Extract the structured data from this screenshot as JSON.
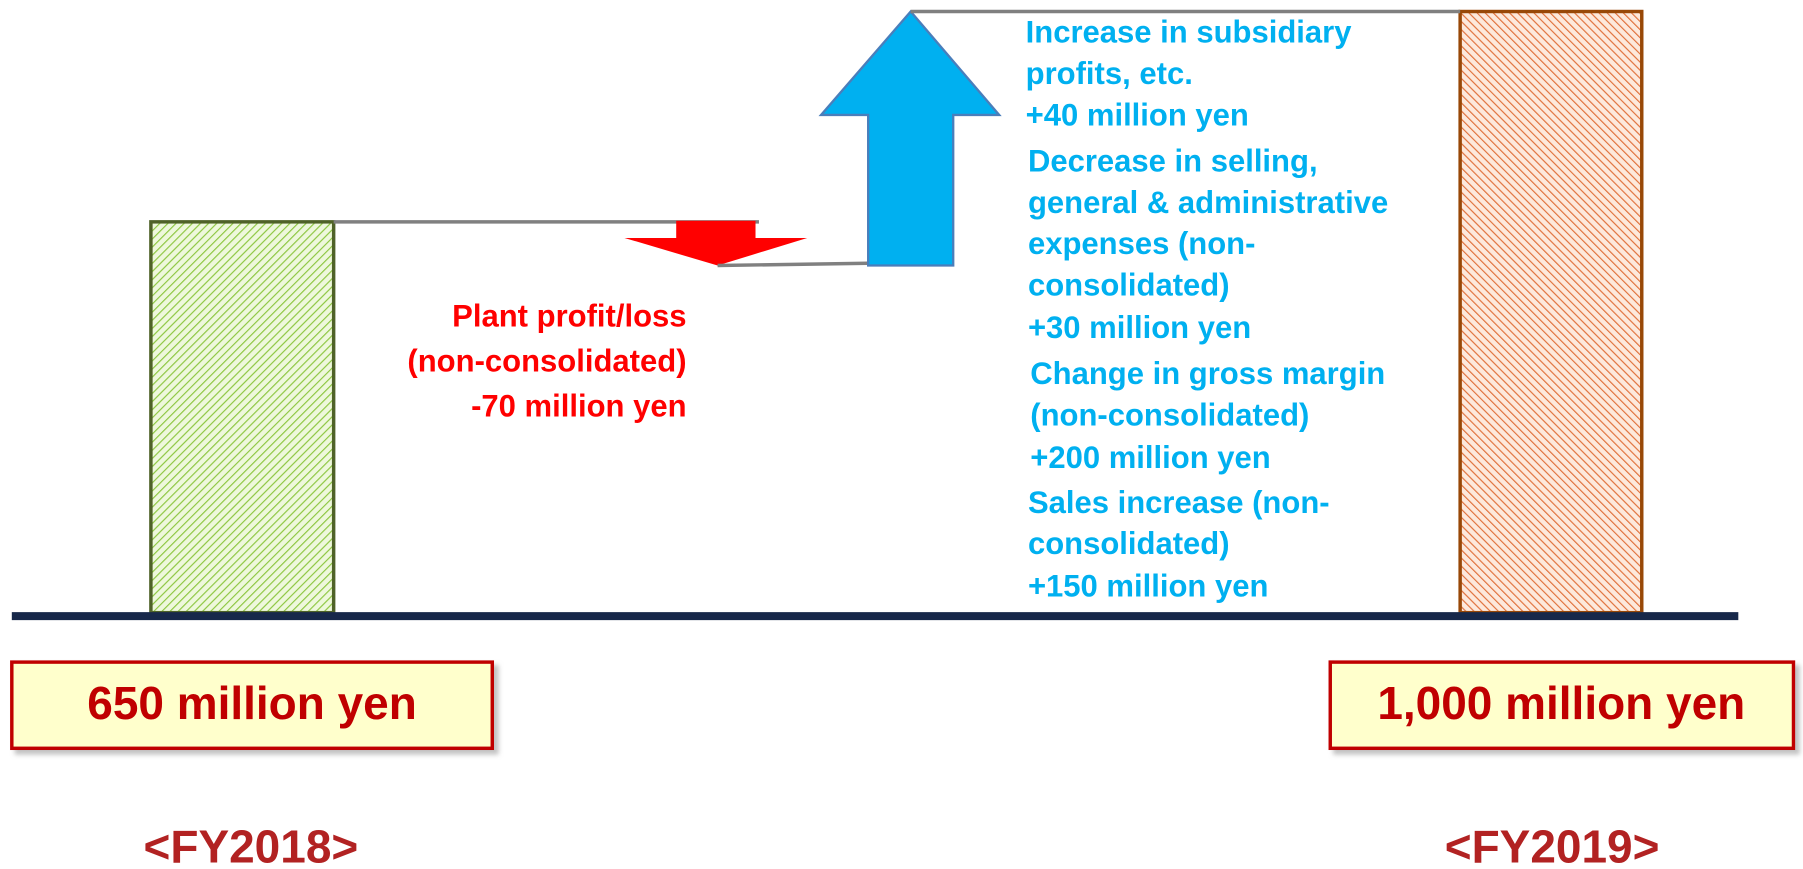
{
  "decrease_note": {
    "lines": [
      "Plant profit/loss",
      "(non-consolidated)",
      "-70 million yen"
    ]
  },
  "increase_notes": [
    {
      "lines": [
        "Increase in subsidiary",
        "profits, etc.",
        "+40 million yen"
      ]
    },
    {
      "lines": [
        "Decrease in selling,",
        "general & administrative",
        "expenses (non-",
        "consolidated)",
        "+30 million yen"
      ]
    },
    {
      "lines": [
        "Change in gross margin",
        "(non-consolidated)",
        "+200 million yen"
      ]
    },
    {
      "lines": [
        "Sales increase (non-",
        "consolidated)",
        "+150 million yen"
      ]
    }
  ],
  "start": {
    "amount": "650 million yen",
    "period": "<FY2018>"
  },
  "end": {
    "amount": "1,000 million yen",
    "period": "<FY2019>"
  }
}
